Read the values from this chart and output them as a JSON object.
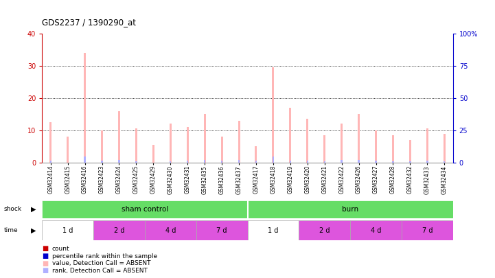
{
  "title": "GDS2237 / 1390290_at",
  "samples": [
    "GSM32414",
    "GSM32415",
    "GSM32416",
    "GSM32423",
    "GSM32424",
    "GSM32425",
    "GSM32429",
    "GSM32430",
    "GSM32431",
    "GSM32435",
    "GSM32436",
    "GSM32437",
    "GSM32417",
    "GSM32418",
    "GSM32419",
    "GSM32420",
    "GSM32421",
    "GSM32422",
    "GSM32426",
    "GSM32427",
    "GSM32428",
    "GSM32432",
    "GSM32433",
    "GSM32434"
  ],
  "count_values": [
    12.5,
    8.0,
    34.0,
    10.0,
    16.0,
    10.5,
    5.5,
    12.0,
    11.0,
    15.0,
    8.0,
    13.0,
    5.0,
    29.5,
    17.0,
    13.5,
    8.5,
    12.0,
    15.0,
    10.0,
    8.5,
    7.0,
    10.5,
    9.0
  ],
  "rank_values": [
    1.5,
    0.0,
    4.5,
    1.5,
    2.0,
    1.0,
    0.0,
    1.0,
    1.5,
    2.0,
    1.5,
    2.0,
    1.5,
    5.0,
    1.5,
    1.5,
    1.0,
    2.0,
    2.0,
    1.5,
    1.0,
    1.0,
    1.5,
    1.0
  ],
  "ylim_left": [
    0,
    40
  ],
  "ylim_right": [
    0,
    100
  ],
  "yticks_left": [
    0,
    10,
    20,
    30,
    40
  ],
  "yticks_right": [
    0,
    25,
    50,
    75,
    100
  ],
  "ytick_labels_right": [
    "0",
    "25",
    "50",
    "75",
    "100%"
  ],
  "color_bar": "#ffb6b6",
  "color_rank": "#b0b0ff",
  "color_count_dot": "#cc0000",
  "color_rank_dot": "#0000cc",
  "shock_groups": [
    {
      "label": "sham control",
      "start": 0,
      "end": 12,
      "color": "#66dd66"
    },
    {
      "label": "burn",
      "start": 12,
      "end": 24,
      "color": "#66dd66"
    }
  ],
  "time_groups": [
    {
      "label": "1 d",
      "start": 0,
      "end": 3,
      "color": "#ffffff"
    },
    {
      "label": "2 d",
      "start": 3,
      "end": 6,
      "color": "#dd55dd"
    },
    {
      "label": "4 d",
      "start": 6,
      "end": 9,
      "color": "#dd55dd"
    },
    {
      "label": "7 d",
      "start": 9,
      "end": 12,
      "color": "#dd55dd"
    },
    {
      "label": "1 d",
      "start": 12,
      "end": 15,
      "color": "#ffffff"
    },
    {
      "label": "2 d",
      "start": 15,
      "end": 18,
      "color": "#dd55dd"
    },
    {
      "label": "4 d",
      "start": 18,
      "end": 21,
      "color": "#dd55dd"
    },
    {
      "label": "7 d",
      "start": 21,
      "end": 24,
      "color": "#dd55dd"
    }
  ],
  "legend_items": [
    {
      "label": "count",
      "color": "#cc0000"
    },
    {
      "label": "percentile rank within the sample",
      "color": "#0000cc"
    },
    {
      "label": "value, Detection Call = ABSENT",
      "color": "#ffb6b6"
    },
    {
      "label": "rank, Detection Call = ABSENT",
      "color": "#b0b0ff"
    }
  ],
  "background_color": "#ffffff",
  "left_axis_color": "#cc0000",
  "right_axis_color": "#0000cc",
  "xtick_bg_color": "#cccccc",
  "bar_width": 0.12,
  "rank_bar_width": 0.12
}
